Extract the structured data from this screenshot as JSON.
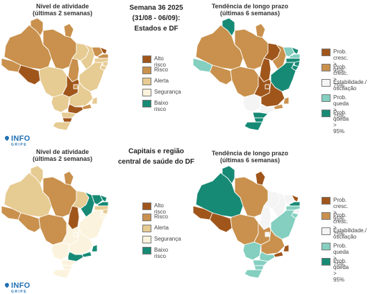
{
  "center": {
    "top_line1": "Semana 36 2025",
    "top_line2": "(31/08 - 06/09):",
    "top_line3": "Estados e DF",
    "bottom_line1": "Capitais e região",
    "bottom_line2": "central de saúde do DF"
  },
  "titles": {
    "activity_line1": "Nível de atividade",
    "activity_line2": "(últimas 2 semanas)",
    "trend_line1": "Tendência de longo prazo",
    "trend_line2": "(últimas 6 semanas)"
  },
  "activity_legend": [
    {
      "label": "Alto risco",
      "color": "#a0561b"
    },
    {
      "label": "Risco",
      "color": "#c9914d"
    },
    {
      "label": "Alerta",
      "color": "#e6cb92"
    },
    {
      "label": "Segurança",
      "color": "#fbf3dd"
    },
    {
      "label": "Baixo risco",
      "color": "#178a75"
    }
  ],
  "trend_legend": [
    {
      "label": "Prob. cresc.\n> 95%",
      "color": "#a0561b"
    },
    {
      "label": "Prob. cresc.\n> 75%",
      "color": "#c9914d"
    },
    {
      "label": "Estabilidade./\noscilação",
      "color": "#f4f4f4"
    },
    {
      "label": "Prob. queda\n> 75%",
      "color": "#84cfc0"
    },
    {
      "label": "Prob. queda\n> 95%",
      "color": "#178a75"
    }
  ],
  "logo": {
    "main": "INFO",
    "sub": "GRIPE"
  },
  "states": [
    "AM",
    "RR",
    "AP",
    "PA",
    "AC",
    "RO",
    "MT",
    "TO",
    "MA",
    "PI",
    "CE",
    "RN",
    "PB",
    "PE",
    "AL",
    "SE",
    "BA",
    "GO",
    "DF",
    "MS",
    "MG",
    "ES",
    "RJ",
    "SP",
    "PR",
    "SC",
    "RS"
  ],
  "maps": {
    "activity_states": {
      "AM": "Risco",
      "RR": "Risco",
      "AP": "Risco",
      "PA": "Risco",
      "AC": "Risco",
      "RO": "Alto risco",
      "MT": "Alerta",
      "TO": "Risco",
      "MA": "Alerta",
      "PI": "Alerta",
      "CE": "Risco",
      "RN": "Alto risco",
      "PB": "Risco",
      "PE": "Alerta",
      "AL": "Alerta",
      "SE": "Alerta",
      "BA": "Alerta",
      "GO": "Alto risco",
      "DF": "Risco",
      "MS": "Alerta",
      "MG": "Alerta",
      "ES": "Alerta",
      "RJ": "Risco",
      "SP": "Alto risco",
      "PR": "Alerta",
      "SC": "Alto risco",
      "RS": "Alerta"
    },
    "trend_states": {
      "AM": "Prob. cresc. > 75%",
      "RR": "Prob. queda > 95%",
      "AP": "Prob. cresc. > 75%",
      "PA": "Prob. cresc. > 75%",
      "AC": "Prob. queda > 75%",
      "RO": "Prob. cresc. > 75%",
      "MT": "Prob. cresc. > 75%",
      "TO": "Prob. cresc. > 95%",
      "MA": "Prob. cresc. > 95%",
      "PI": "Prob. cresc. > 75%",
      "CE": "Prob. queda > 75%",
      "RN": "Prob. queda > 95%",
      "PB": "Prob. queda > 75%",
      "PE": "Prob. queda > 95%",
      "AL": "Prob. queda > 95%",
      "SE": "Prob. queda > 95%",
      "BA": "Prob. queda > 95%",
      "GO": "Prob. cresc. > 95%",
      "DF": "Prob. cresc. > 95%",
      "MS": "Estabilidade./ oscilação",
      "MG": "Prob. cresc. > 95%",
      "ES": "Prob. cresc. > 75%",
      "RJ": "Prob. cresc. > 75%",
      "SP": "Estabilidade./ oscilação",
      "PR": "Prob. queda > 95%",
      "SC": "Prob. queda > 95%",
      "RS": "Prob. queda > 95%"
    },
    "activity_capitals": {
      "AM": "Alerta",
      "RR": "Alerta",
      "AP": "Risco",
      "PA": "Risco",
      "AC": "Risco",
      "RO": "Risco",
      "MT": "Risco",
      "TO": "Alto risco",
      "MA": "Alerta",
      "PI": "Baixo risco",
      "CE": "Baixo risco",
      "RN": "Baixo risco",
      "PB": "Baixo risco",
      "PE": "Alerta",
      "AL": "Alerta",
      "SE": "Segurança",
      "BA": "Segurança",
      "GO": "Segurança",
      "DF": "Segurança",
      "MS": "Segurança",
      "MG": "Segurança",
      "ES": "Baixo risco",
      "RJ": "Baixo risco",
      "SP": "Baixo risco",
      "PR": "Segurança",
      "SC": "Segurança",
      "RS": "Segurança"
    },
    "trend_capitals": {
      "AM": "Prob. queda > 95%",
      "RR": "Prob. queda > 95%",
      "AP": "Prob. cresc. > 95%",
      "PA": "Prob. cresc. > 75%",
      "AC": "Prob. cresc. > 95%",
      "RO": "Prob. cresc. > 95%",
      "MT": "Prob. cresc. > 75%",
      "TO": "Estabilidade./ oscilação",
      "MA": "Estabilidade./ oscilação",
      "PI": "Estabilidade./ oscilação",
      "CE": "Estabilidade./ oscilação",
      "RN": "Prob. cresc. > 95%",
      "PB": "Prob. queda > 95%",
      "PE": "Prob. queda > 75%",
      "AL": "Estabilidade./ oscilação",
      "SE": "Prob. queda > 75%",
      "BA": "Prob. queda > 75%",
      "GO": "Prob. cresc. > 75%",
      "DF": "Estabilidade./ oscilação",
      "MS": "Prob. queda > 75%",
      "MG": "Prob. cresc. > 75%",
      "ES": "Prob. cresc. > 95%",
      "RJ": "Prob. cresc. > 95%",
      "SP": "Prob. queda > 75%",
      "PR": "Prob. queda > 75%",
      "SC": "Prob. queda > 75%",
      "RS": "Prob. queda > 75%"
    }
  }
}
